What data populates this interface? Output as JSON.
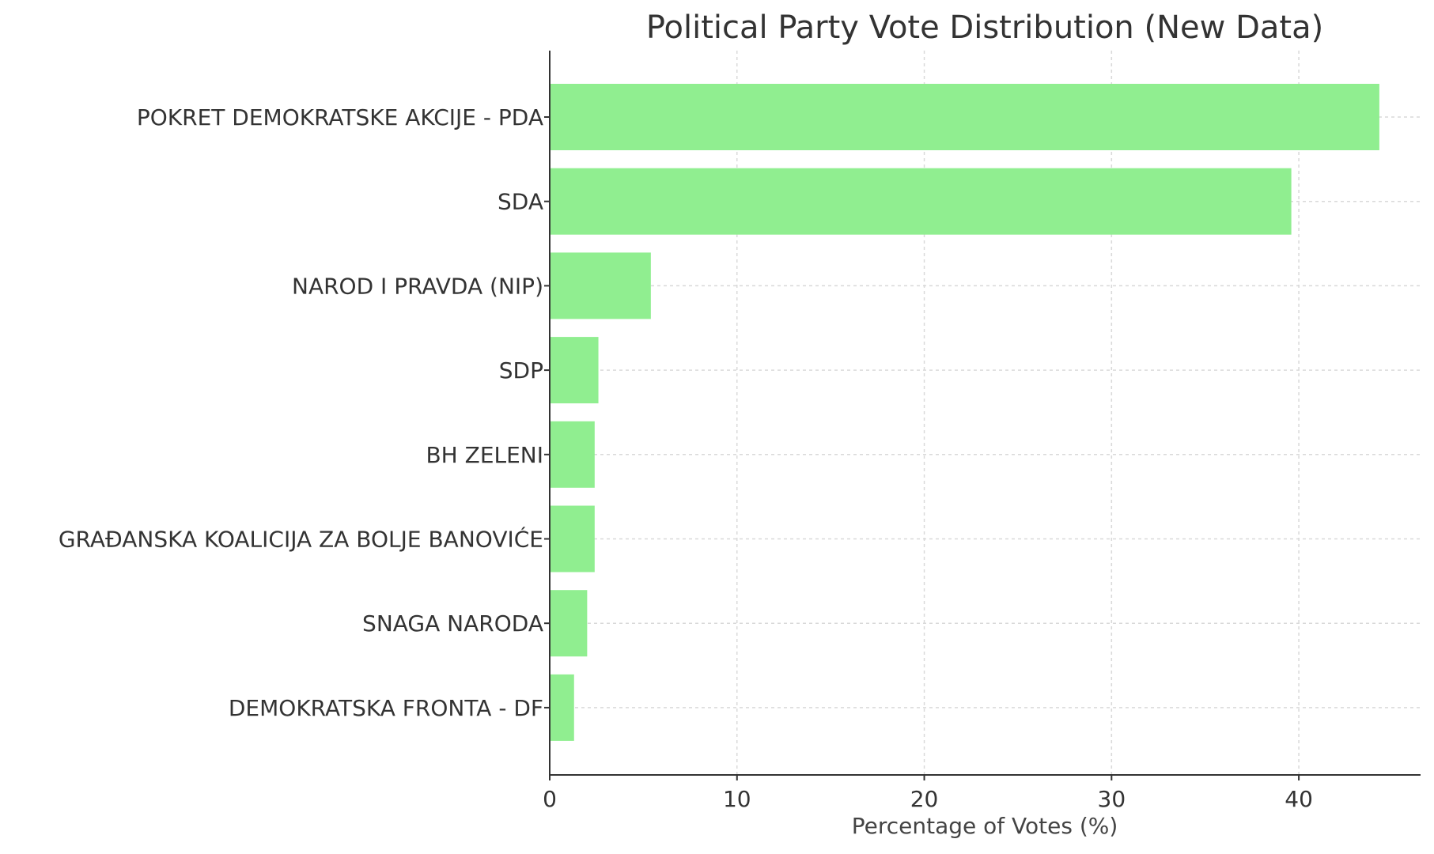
{
  "chart_data": {
    "type": "bar",
    "orientation": "horizontal",
    "title": "Political Party Vote Distribution (New Data)",
    "xlabel": "Percentage of Votes (%)",
    "ylabel": "",
    "xlim": [
      0,
      46.5
    ],
    "xticks": [
      0,
      10,
      20,
      30,
      40
    ],
    "grid": true,
    "bar_color": "#90ee90",
    "categories": [
      "POKRET DEMOKRATSKE AKCIJE - PDA",
      "SDA",
      "NAROD I PRAVDA (NIP)",
      "SDP",
      "BH ZELENI",
      "GRAĐANSKA KOALICIJA ZA BOLJE BANOVIĆE",
      "SNAGA NARODA",
      "DEMOKRATSKA FRONTA - DF"
    ],
    "values": [
      44.3,
      39.6,
      5.4,
      2.6,
      2.4,
      2.4,
      2.0,
      1.3
    ]
  }
}
